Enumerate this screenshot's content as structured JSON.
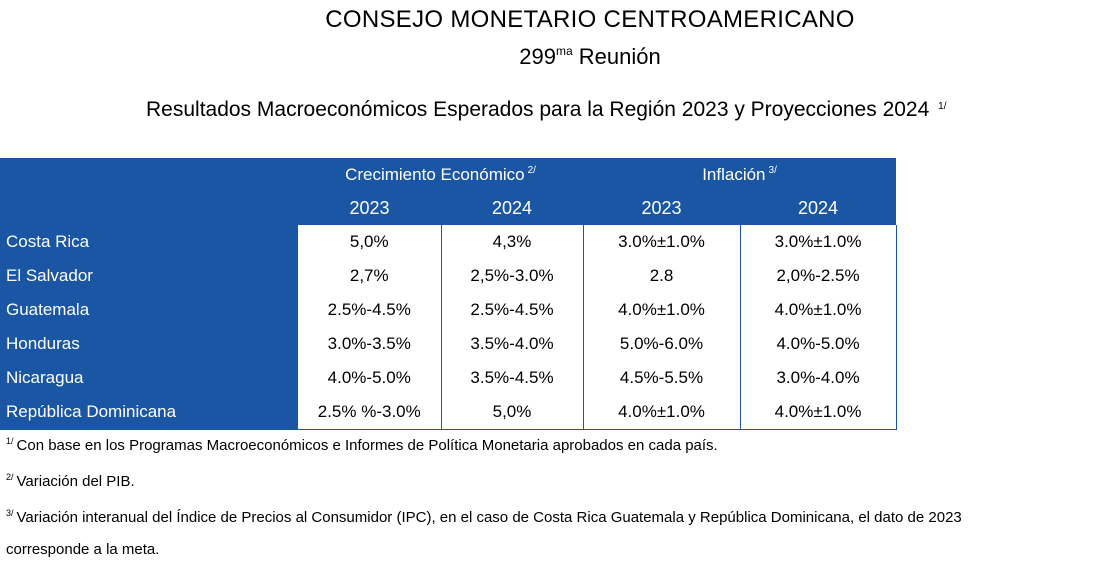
{
  "header": {
    "org": "CONSEJO MONETARIO CENTROAMERICANO",
    "meeting_number": "299",
    "meeting_sup": "ma",
    "meeting_word": "Reunión",
    "subtitle": "Resultados Macroeconómicos Esperados para la Región 2023 y Proyecciones 2024",
    "subtitle_note": "1/"
  },
  "table": {
    "group_growth": "Crecimiento Económico",
    "group_growth_note": "2/",
    "group_inflation": "Inflación",
    "group_inflation_note": "3/",
    "years": [
      "2023",
      "2024",
      "2023",
      "2024"
    ],
    "rows": [
      {
        "country": "Costa Rica",
        "g2023": "5,0%",
        "g2024": "4,3%",
        "i2023": "3.0%±1.0%",
        "i2024": "3.0%±1.0%"
      },
      {
        "country": "El Salvador",
        "g2023": "2,7%",
        "g2024": "2,5%-3.0%",
        "i2023": "2.8",
        "i2024": "2,0%-2.5%"
      },
      {
        "country": "Guatemala",
        "g2023": "2.5%-4.5%",
        "g2024": "2.5%-4.5%",
        "i2023": "4.0%±1.0%",
        "i2024": "4.0%±1.0%"
      },
      {
        "country": "Honduras",
        "g2023": "3.0%-3.5%",
        "g2024": "3.5%-4.0%",
        "i2023": "5.0%-6.0%",
        "i2024": "4.0%-5.0%"
      },
      {
        "country": "Nicaragua",
        "g2023": "4.0%-5.0%",
        "g2024": "3.5%-4.5%",
        "i2023": "4.5%-5.5%",
        "i2024": "3.0%-4.0%"
      },
      {
        "country": "República Dominicana",
        "g2023": "2.5% %-3.0%",
        "g2024": "5,0%",
        "i2023": "4.0%±1.0%",
        "i2024": "4.0%±1.0%"
      }
    ]
  },
  "notes": [
    {
      "mark": "1/",
      "text": "Con base en los Programas Macroeconómicos e Informes de Política Monetaria aprobados en cada país."
    },
    {
      "mark": "2/",
      "text": "Variación del PIB."
    },
    {
      "mark": "3/",
      "text": "Variación interanual del Índice de Precios al Consumidor (IPC), en el caso de Costa Rica Guatemala y República Dominicana, el dato de 2023"
    },
    {
      "mark": "",
      "text": "corresponde a la meta."
    }
  ],
  "colors": {
    "header_blue": "#1a56a4"
  }
}
